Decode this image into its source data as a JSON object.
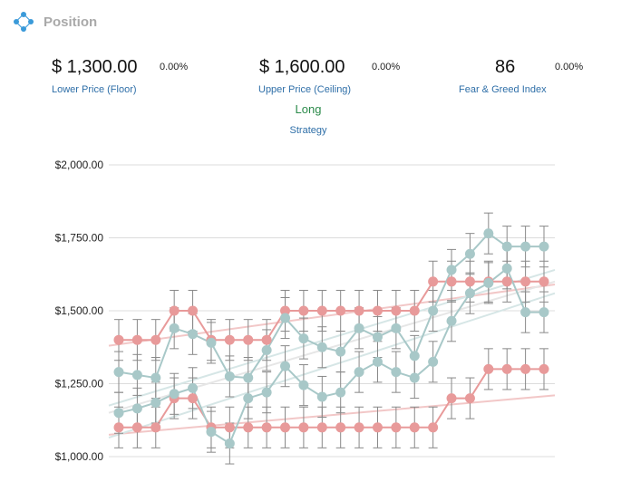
{
  "header": {
    "title": "Position",
    "icon": "position-icon"
  },
  "metrics": {
    "floor": {
      "value": "$ 1,300.00",
      "change": "0.00%",
      "label": "Lower Price (Floor)"
    },
    "ceiling": {
      "value": "$ 1,600.00",
      "change": "0.00%",
      "label": "Upper Price (Ceiling)"
    },
    "fear_greed": {
      "value": "86",
      "change": "0.00%",
      "label": "Fear & Greed Index"
    }
  },
  "strategy": {
    "value": "Long",
    "label": "Strategy"
  },
  "colors": {
    "red_series": "#e89a9a",
    "teal_series": "#a8c8c8",
    "label_blue": "#2f6fa8",
    "strategy_green": "#2b8a4a",
    "title_gray": "#a9a9a9"
  },
  "chart_data": {
    "type": "line",
    "ylim": [
      1000,
      2000
    ],
    "ytick_labels": [
      "$2,000.00",
      "$1,750.00",
      "$1,500.00",
      "$1,250.00",
      "$1,000.00"
    ],
    "yticks": [
      2000,
      1750,
      1500,
      1250,
      1000
    ],
    "x": [
      1,
      2,
      3,
      4,
      5,
      6,
      7,
      8,
      9,
      10,
      11,
      12,
      13,
      14,
      15,
      16,
      17,
      18,
      19,
      20,
      21,
      22,
      23,
      24
    ],
    "grid": true,
    "series": [
      {
        "color": "#e89a9a",
        "values": [
          1400,
          1400,
          1400,
          1500,
          1500,
          1400,
          1400,
          1400,
          1400,
          1500,
          1500,
          1500,
          1500,
          1500,
          1500,
          1500,
          1500,
          1600,
          1600,
          1600,
          1600,
          1600,
          1600,
          1600
        ]
      },
      {
        "color": "#e89a9a",
        "values": [
          1100,
          1100,
          1100,
          1200,
          1200,
          1100,
          1100,
          1100,
          1100,
          1100,
          1100,
          1100,
          1100,
          1100,
          1100,
          1100,
          1100,
          1100,
          1200,
          1200,
          1300,
          1300,
          1300,
          1300
        ]
      },
      {
        "color": "#a8c8c8",
        "values": [
          1290,
          1280,
          1270,
          1440,
          1420,
          1390,
          1275,
          1270,
          1365,
          1475,
          1405,
          1375,
          1360,
          1440,
          1410,
          1440,
          1345,
          1500,
          1640,
          1695,
          1765,
          1720,
          1720,
          1720
        ]
      },
      {
        "color": "#a8c8c8",
        "values": [
          1150,
          1165,
          1185,
          1215,
          1235,
          1085,
          1045,
          1200,
          1220,
          1310,
          1245,
          1205,
          1220,
          1290,
          1325,
          1290,
          1270,
          1325,
          1465,
          1560,
          1595,
          1645,
          1495,
          1495
        ]
      }
    ],
    "error_bar": 70
  }
}
